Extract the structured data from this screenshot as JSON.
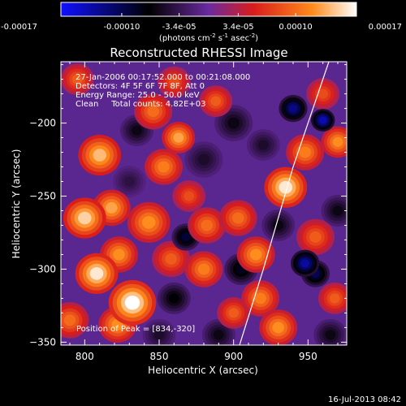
{
  "chart_data": {
    "type": "heatmap",
    "title": "Reconstructed RHESSI Image",
    "xlabel": "Heliocentric X (arcsec)",
    "ylabel": "Heliocentric Y (arcsec)",
    "xlim": [
      784,
      976
    ],
    "ylim": [
      -352,
      -158
    ],
    "x_ticks": [
      800,
      850,
      900,
      950
    ],
    "y_ticks": [
      -200,
      -250,
      -300,
      -350
    ],
    "colorbar": {
      "range": [
        -0.00017,
        0.00017
      ],
      "tick_values": [
        -0.00017,
        -0.0001,
        -3.4e-05,
        3.4e-05,
        0.0001,
        0.00017
      ],
      "tick_labels": [
        "-0.00017",
        "-0.00010",
        "-3.4e-05",
        "3.4e-05",
        "0.00010",
        "0.00017"
      ],
      "units_text": "(photons cm",
      "units_exp1": "-2",
      "units_mid": " s",
      "units_exp2": "-1",
      "units_mid2": " asec",
      "units_exp3": "-2",
      "units_end": ")",
      "colors": [
        "#1010ff",
        "#000000",
        "#6a2aa0",
        "#d81c1c",
        "#ff8a1a",
        "#ffffff"
      ]
    },
    "annotations": [
      "27-Jan-2006 00:17:52.000 to 00:21:08.000",
      "Detectors: 4F 5F 6F 7F 8F, Att 0",
      "Energy Range: 25.0 - 50.0 keV",
      "Clean     Total counts: 4.82E+03"
    ],
    "peak_label": "Position of Peak = [834,-320]",
    "peak": {
      "x": 834,
      "y": -320
    },
    "limb": [
      [
        964,
        -158
      ],
      [
        940,
        -230
      ],
      [
        920,
        -300
      ],
      [
        904,
        -352
      ]
    ],
    "timestamp": "16-Jul-2013 08:42",
    "blobs": [
      {
        "x": 810,
        "y": -222,
        "v": 0.00014,
        "s": 9
      },
      {
        "x": 800,
        "y": -265,
        "v": 0.00015,
        "s": 9
      },
      {
        "x": 818,
        "y": -258,
        "v": 0.00013,
        "s": 8
      },
      {
        "x": 808,
        "y": -303,
        "v": 0.00016,
        "s": 9
      },
      {
        "x": 823,
        "y": -290,
        "v": 0.00012,
        "s": 8
      },
      {
        "x": 832,
        "y": -323,
        "v": 0.00017,
        "s": 10
      },
      {
        "x": 822,
        "y": -338,
        "v": 0.00012,
        "s": 8
      },
      {
        "x": 846,
        "y": -192,
        "v": 0.0001,
        "s": 8
      },
      {
        "x": 853,
        "y": -230,
        "v": 0.00011,
        "s": 8
      },
      {
        "x": 843,
        "y": -268,
        "v": 0.00012,
        "s": 9
      },
      {
        "x": 858,
        "y": -293,
        "v": 9e-05,
        "s": 8
      },
      {
        "x": 863,
        "y": -210,
        "v": 0.00013,
        "s": 7
      },
      {
        "x": 870,
        "y": -250,
        "v": 8e-05,
        "s": 7
      },
      {
        "x": 882,
        "y": -270,
        "v": 0.0001,
        "s": 8
      },
      {
        "x": 880,
        "y": -300,
        "v": 0.00011,
        "s": 8
      },
      {
        "x": 888,
        "y": -185,
        "v": 9e-05,
        "s": 7
      },
      {
        "x": 903,
        "y": -265,
        "v": 0.0001,
        "s": 8
      },
      {
        "x": 915,
        "y": -290,
        "v": 0.00012,
        "s": 8
      },
      {
        "x": 918,
        "y": -320,
        "v": 0.00011,
        "s": 8
      },
      {
        "x": 930,
        "y": -340,
        "v": 0.00012,
        "s": 8
      },
      {
        "x": 935,
        "y": -244,
        "v": 0.00016,
        "s": 9
      },
      {
        "x": 948,
        "y": -220,
        "v": 0.00011,
        "s": 8
      },
      {
        "x": 970,
        "y": -213,
        "v": 0.00012,
        "s": 7
      },
      {
        "x": 955,
        "y": -278,
        "v": 9e-05,
        "s": 8
      },
      {
        "x": 968,
        "y": -320,
        "v": 9e-05,
        "s": 7
      },
      {
        "x": 900,
        "y": -330,
        "v": 9e-05,
        "s": 7
      },
      {
        "x": 795,
        "y": -170,
        "v": 9e-05,
        "s": 7
      },
      {
        "x": 860,
        "y": -172,
        "v": 8e-05,
        "s": 7
      },
      {
        "x": 790,
        "y": -335,
        "v": 0.0001,
        "s": 8
      },
      {
        "x": 960,
        "y": -180,
        "v": 8e-05,
        "s": 7
      },
      {
        "x": 835,
        "y": -205,
        "v": -6e-05,
        "s": 7
      },
      {
        "x": 880,
        "y": -225,
        "v": -5e-05,
        "s": 8
      },
      {
        "x": 868,
        "y": -278,
        "v": -9e-05,
        "s": 6
      },
      {
        "x": 940,
        "y": -190,
        "v": -0.00012,
        "s": 6
      },
      {
        "x": 960,
        "y": -198,
        "v": -0.00014,
        "s": 5
      },
      {
        "x": 948,
        "y": -296,
        "v": -0.00013,
        "s": 6
      },
      {
        "x": 955,
        "y": -303,
        "v": -0.0001,
        "s": 6
      },
      {
        "x": 905,
        "y": -300,
        "v": -8e-05,
        "s": 7
      },
      {
        "x": 900,
        "y": -200,
        "v": -6e-05,
        "s": 8
      },
      {
        "x": 860,
        "y": -320,
        "v": -7e-05,
        "s": 7
      },
      {
        "x": 930,
        "y": -270,
        "v": -6e-05,
        "s": 7
      },
      {
        "x": 830,
        "y": -240,
        "v": -4e-05,
        "s": 7
      },
      {
        "x": 920,
        "y": -215,
        "v": -5e-05,
        "s": 7
      },
      {
        "x": 970,
        "y": -260,
        "v": -6e-05,
        "s": 7
      },
      {
        "x": 965,
        "y": -345,
        "v": -6e-05,
        "s": 7
      },
      {
        "x": 850,
        "y": -345,
        "v": -5e-05,
        "s": 7
      },
      {
        "x": 890,
        "y": -345,
        "v": -6e-05,
        "s": 7
      }
    ]
  }
}
